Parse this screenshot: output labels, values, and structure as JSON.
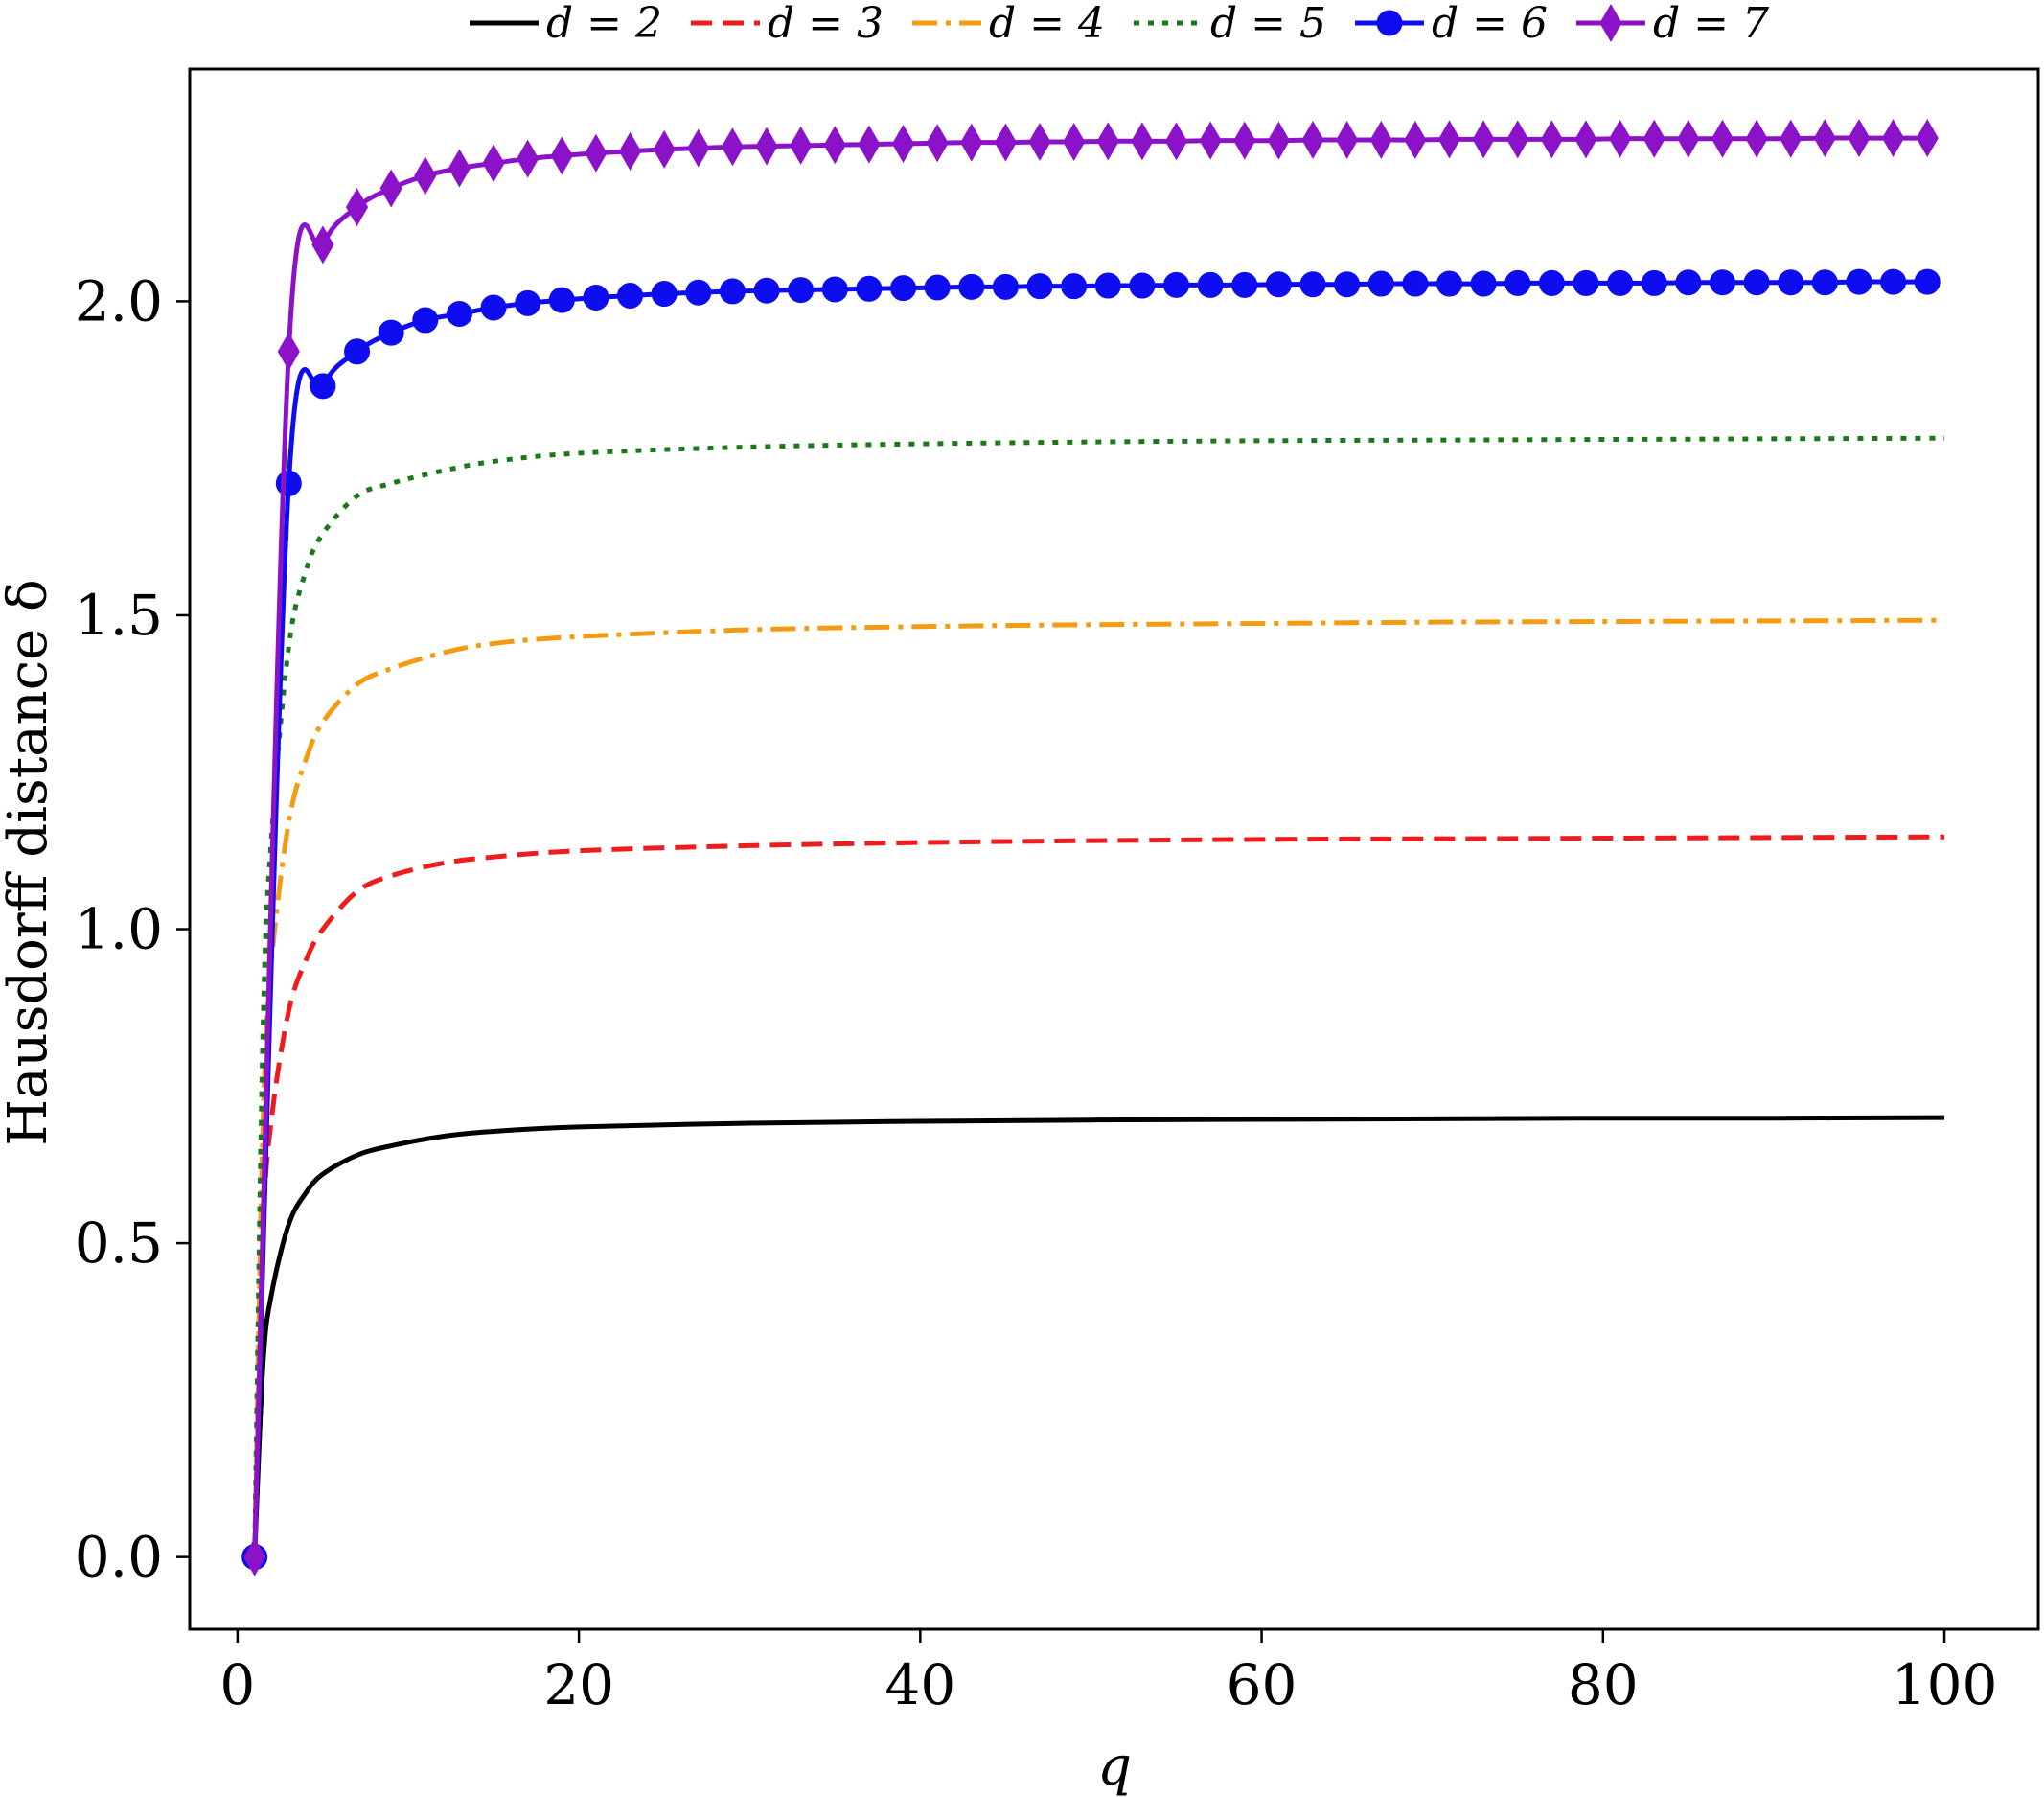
{
  "chart_data": {
    "type": "line",
    "xlabel": "q",
    "ylabel": "Hausdorff distance δ",
    "xlim": [
      -2.8,
      105.5
    ],
    "ylim": [
      -0.115,
      2.37
    ],
    "xticks": [
      0,
      20,
      40,
      60,
      80,
      100
    ],
    "xtick_labels": [
      "0",
      "20",
      "40",
      "60",
      "80",
      "100"
    ],
    "yticks": [
      0.0,
      0.5,
      1.0,
      1.5,
      2.0
    ],
    "ytick_labels": [
      "0.0",
      "0.5",
      "1.0",
      "1.5",
      "2.0"
    ],
    "grid": false,
    "legend_position": "top-outside",
    "series": [
      {
        "name": "d = 2",
        "color": "#000000",
        "style": "solid",
        "marker": "none",
        "x": [
          1,
          1.5,
          2,
          3,
          4,
          5,
          7,
          9,
          12,
          15,
          20,
          30,
          40,
          50,
          60,
          70,
          80,
          90,
          100
        ],
        "y": [
          0.0,
          0.31,
          0.42,
          0.53,
          0.58,
          0.61,
          0.64,
          0.655,
          0.67,
          0.678,
          0.685,
          0.691,
          0.694,
          0.696,
          0.697,
          0.698,
          0.699,
          0.699,
          0.7
        ]
      },
      {
        "name": "d = 3",
        "color": "#ee1c1c",
        "style": "dashed",
        "marker": "none",
        "x": [
          1,
          1.5,
          2,
          3,
          4,
          5,
          7,
          9,
          12,
          15,
          20,
          30,
          40,
          50,
          60,
          70,
          80,
          90,
          100
        ],
        "y": [
          0.0,
          0.52,
          0.7,
          0.87,
          0.95,
          1.0,
          1.06,
          1.085,
          1.105,
          1.115,
          1.125,
          1.133,
          1.138,
          1.141,
          1.143,
          1.144,
          1.145,
          1.146,
          1.147
        ]
      },
      {
        "name": "d = 4",
        "color": "#f39c12",
        "style": "dashdot",
        "marker": "none",
        "x": [
          1,
          1.5,
          2,
          3,
          4,
          5,
          7,
          9,
          12,
          15,
          20,
          30,
          40,
          50,
          60,
          70,
          80,
          90,
          100
        ],
        "y": [
          0.0,
          0.7,
          0.95,
          1.17,
          1.27,
          1.33,
          1.39,
          1.415,
          1.44,
          1.455,
          1.466,
          1.477,
          1.482,
          1.485,
          1.487,
          1.489,
          1.49,
          1.491,
          1.492
        ]
      },
      {
        "name": "d = 5",
        "color": "#1a7a1a",
        "style": "dotted",
        "marker": "none",
        "x": [
          1,
          1.5,
          2,
          3,
          4,
          5,
          7,
          9,
          12,
          15,
          20,
          30,
          40,
          50,
          60,
          70,
          80,
          90,
          100
        ],
        "y": [
          0.0,
          0.85,
          1.15,
          1.45,
          1.57,
          1.63,
          1.69,
          1.71,
          1.73,
          1.745,
          1.758,
          1.768,
          1.773,
          1.776,
          1.778,
          1.779,
          1.78,
          1.781,
          1.782
        ]
      },
      {
        "name": "d = 6",
        "color": "#0d0df0",
        "style": "solid",
        "marker": "circle",
        "x": [
          1,
          3,
          5,
          7,
          9,
          11,
          13,
          15,
          17,
          19,
          21,
          23,
          25,
          27,
          29,
          31,
          33,
          35,
          37,
          39,
          41,
          43,
          45,
          47,
          49,
          51,
          53,
          55,
          57,
          59,
          61,
          63,
          65,
          67,
          69,
          71,
          73,
          75,
          77,
          79,
          81,
          83,
          85,
          87,
          89,
          91,
          93,
          95,
          97,
          99
        ],
        "y": [
          0.0,
          1.71,
          1.865,
          1.92,
          1.95,
          1.97,
          1.98,
          1.99,
          1.997,
          2.002,
          2.006,
          2.009,
          2.012,
          2.014,
          2.016,
          2.017,
          2.018,
          2.019,
          2.02,
          2.021,
          2.022,
          2.023,
          2.023,
          2.024,
          2.024,
          2.025,
          2.025,
          2.026,
          2.026,
          2.026,
          2.027,
          2.027,
          2.027,
          2.028,
          2.028,
          2.028,
          2.028,
          2.029,
          2.029,
          2.029,
          2.029,
          2.029,
          2.03,
          2.03,
          2.03,
          2.03,
          2.03,
          2.031,
          2.031,
          2.031
        ]
      },
      {
        "name": "d = 7",
        "color": "#8b12c8",
        "style": "solid",
        "marker": "diamond",
        "x": [
          1,
          3,
          5,
          7,
          9,
          11,
          13,
          15,
          17,
          19,
          21,
          23,
          25,
          27,
          29,
          31,
          33,
          35,
          37,
          39,
          41,
          43,
          45,
          47,
          49,
          51,
          53,
          55,
          57,
          59,
          61,
          63,
          65,
          67,
          69,
          71,
          73,
          75,
          77,
          79,
          81,
          83,
          85,
          87,
          89,
          91,
          93,
          95,
          97,
          99
        ],
        "y": [
          0.0,
          1.92,
          2.09,
          2.15,
          2.18,
          2.2,
          2.212,
          2.22,
          2.227,
          2.232,
          2.236,
          2.239,
          2.242,
          2.244,
          2.246,
          2.247,
          2.248,
          2.249,
          2.25,
          2.251,
          2.252,
          2.253,
          2.253,
          2.254,
          2.254,
          2.255,
          2.255,
          2.255,
          2.256,
          2.256,
          2.256,
          2.257,
          2.257,
          2.257,
          2.257,
          2.258,
          2.258,
          2.258,
          2.258,
          2.258,
          2.259,
          2.259,
          2.259,
          2.259,
          2.259,
          2.259,
          2.26,
          2.26,
          2.26,
          2.26
        ]
      }
    ]
  }
}
